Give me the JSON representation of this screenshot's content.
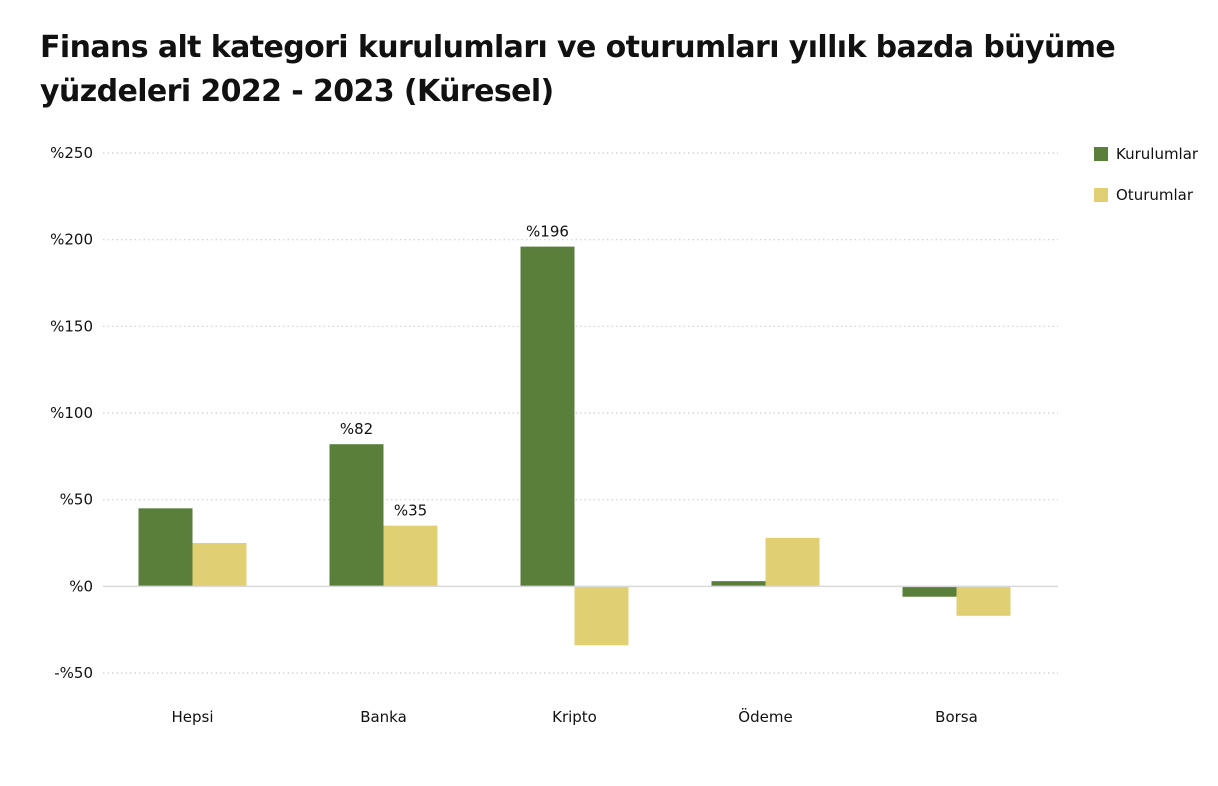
{
  "chart_data": {
    "type": "bar",
    "title": "Finans alt kategori kurulumları ve oturumları yıllık bazda büyüme yüzdeleri 2022 - 2023 (Küresel)",
    "categories": [
      "Hepsi",
      "Banka",
      "Kripto",
      "Ödeme",
      "Borsa"
    ],
    "series": [
      {
        "name": "Kurulumlar",
        "color": "#5a7f3a",
        "values": [
          45,
          82,
          196,
          3,
          -6
        ],
        "labels": [
          null,
          "%82",
          "%196",
          null,
          null
        ]
      },
      {
        "name": "Oturumlar",
        "color": "#e0d073",
        "values": [
          25,
          35,
          -34,
          28,
          -17
        ],
        "labels": [
          null,
          "%35",
          null,
          null,
          null
        ]
      }
    ],
    "ylim": [
      -50,
      250
    ],
    "yticks": [
      250,
      200,
      150,
      100,
      50,
      0,
      -50
    ],
    "ytick_labels": [
      "%250",
      "%200",
      "%150",
      "%100",
      "%50",
      "%0",
      "-%50"
    ],
    "grid": true,
    "legend_position": "top-right",
    "xlabel": "",
    "ylabel": ""
  }
}
